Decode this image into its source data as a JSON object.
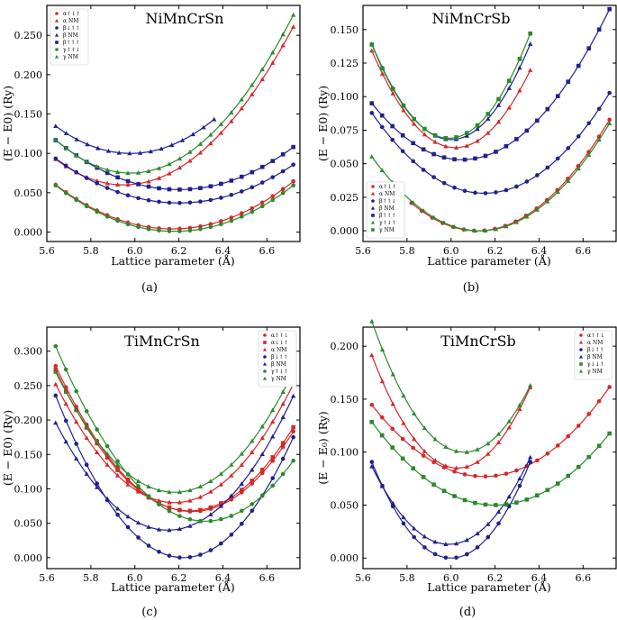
{
  "figure": {
    "colors": {
      "alpha": "#d62728",
      "beta": "#1f1f8f",
      "gamma": "#2a8a2a"
    }
  },
  "chart_data": [
    {
      "type": "scatter",
      "title": "NiMnCrSn",
      "caption": "(a)",
      "xlabel": "Lattice parameter (Å)",
      "ylabel": "(E − E0) (Ry)",
      "xlim": [
        5.6,
        6.75
      ],
      "ylim": [
        -0.012,
        0.288
      ],
      "xticks": [
        "5.6",
        "5.8",
        "6.0",
        "6.2",
        "6.4",
        "6.6"
      ],
      "xtick_values": [
        5.6,
        5.8,
        6.0,
        6.2,
        6.4,
        6.6
      ],
      "yticks": [
        "0.000",
        "0.050",
        "0.100",
        "0.150",
        "0.200",
        "0.250"
      ],
      "ytick_values": [
        0,
        0.05,
        0.1,
        0.15,
        0.2,
        0.25
      ],
      "legend_position": "top-left",
      "series": [
        {
          "name": "α↑↓↑",
          "color": "#d62728",
          "marker": "circle",
          "a0": 6.17,
          "e0": 0.004,
          "k": 0.2,
          "range": [
            5.64,
            6.72
          ],
          "n": 24
        },
        {
          "name": "α NM",
          "color": "#d62728",
          "marker": "triangle",
          "a0": 5.95,
          "e0": 0.06,
          "k": 0.339,
          "range": [
            5.64,
            6.72
          ],
          "n": 24
        },
        {
          "name": "β↓↑↑",
          "color": "#1f1f8f",
          "marker": "circle",
          "a0": 6.2,
          "e0": 0.037,
          "k": 0.18,
          "range": [
            5.64,
            6.72
          ],
          "n": 24
        },
        {
          "name": "β NM",
          "color": "#1f1f8f",
          "marker": "triangle",
          "a0": 5.98,
          "e0": 0.1,
          "k": 0.3,
          "range": [
            5.64,
            6.36
          ],
          "n": 16
        },
        {
          "name": "β↑↑↑",
          "color": "#1f1f8f",
          "marker": "square",
          "a0": 6.2,
          "e0": 0.054,
          "k": 0.2,
          "range": [
            5.64,
            6.72
          ],
          "n": 24
        },
        {
          "name": "γ↑↑↓",
          "color": "#2a8a2a",
          "marker": "circle",
          "a0": 6.18,
          "e0": 0.001,
          "k": 0.2,
          "range": [
            5.64,
            6.72
          ],
          "n": 24
        },
        {
          "name": "γ NM",
          "color": "#2a8a2a",
          "marker": "triangle",
          "a0": 5.98,
          "e0": 0.075,
          "k": 0.367,
          "range": [
            5.64,
            6.72
          ],
          "n": 24
        }
      ]
    },
    {
      "type": "scatter",
      "title": "NiMnCrSb",
      "caption": "(b)",
      "xlabel": "Lattice parameter (Å)",
      "ylabel": "(E − E0) (Ry)",
      "xlim": [
        5.6,
        6.75
      ],
      "ylim": [
        -0.008,
        0.168
      ],
      "xticks": [
        "5.6",
        "5.8",
        "6.0",
        "6.2",
        "6.4",
        "6.6"
      ],
      "xtick_values": [
        5.6,
        5.8,
        6.0,
        6.2,
        6.4,
        6.6
      ],
      "yticks": [
        "0.000",
        "0.025",
        "0.050",
        "0.075",
        "0.100",
        "0.125",
        "0.150"
      ],
      "ytick_values": [
        0,
        0.025,
        0.05,
        0.075,
        0.1,
        0.125,
        0.15
      ],
      "legend_position": "bottom-left",
      "series": [
        {
          "name": "α↑↓↑",
          "color": "#d62728",
          "marker": "circle",
          "a0": 6.12,
          "e0": 0.0,
          "k": 0.23,
          "range": [
            5.82,
            6.72
          ],
          "n": 20
        },
        {
          "name": "α NM",
          "color": "#d62728",
          "marker": "triangle",
          "a0": 6.02,
          "e0": 0.062,
          "k": 0.5,
          "range": [
            5.64,
            6.36
          ],
          "n": 16
        },
        {
          "name": "β↑↑↓",
          "color": "#1f1f8f",
          "marker": "circle",
          "a0": 6.15,
          "e0": 0.028,
          "k": 0.23,
          "range": [
            5.64,
            6.72
          ],
          "n": 24
        },
        {
          "name": "β NM",
          "color": "#1f1f8f",
          "marker": "triangle",
          "a0": 6.0,
          "e0": 0.068,
          "k": 0.55,
          "range": [
            5.64,
            6.36
          ],
          "n": 16
        },
        {
          "name": "β↑↑↑",
          "color": "#1f1f8f",
          "marker": "square",
          "a0": 6.05,
          "e0": 0.053,
          "k": 0.25,
          "range": [
            5.64,
            6.72
          ],
          "n": 24
        },
        {
          "name": "γ↑↓↑",
          "color": "#2a8a2a",
          "marker": "triangle",
          "a0": 6.13,
          "e0": 0.0,
          "k": 0.23,
          "range": [
            5.64,
            6.72
          ],
          "n": 24
        },
        {
          "name": "γ NM",
          "color": "#2a8a2a",
          "marker": "square",
          "a0": 5.99,
          "e0": 0.069,
          "k": 0.57,
          "range": [
            5.64,
            6.36
          ],
          "n": 16
        }
      ]
    },
    {
      "type": "scatter",
      "title": "TiMnCrSn",
      "caption": "(c)",
      "xlabel": "Lattice parameter (Å)",
      "ylabel": "(E − E0) (Ry)",
      "xlim": [
        5.6,
        6.75
      ],
      "ylim": [
        -0.016,
        0.335
      ],
      "xticks": [
        "5.6",
        "5.8",
        "6.0",
        "6.2",
        "6.4",
        "6.6"
      ],
      "xtick_values": [
        5.6,
        5.8,
        6.0,
        6.2,
        6.4,
        6.6
      ],
      "yticks": [
        "0.000",
        "0.050",
        "0.100",
        "0.150",
        "0.200",
        "0.250",
        "0.300"
      ],
      "ytick_values": [
        0,
        0.05,
        0.1,
        0.15,
        0.2,
        0.25,
        0.3
      ],
      "legend_position": "top-right",
      "series": [
        {
          "name": "α↑↑↓",
          "color": "#d62728",
          "marker": "circle",
          "a0": 6.26,
          "e0": 0.067,
          "k": 0.55,
          "range": [
            5.64,
            6.72
          ],
          "n": 24
        },
        {
          "name": "α↓↓↑",
          "color": "#d62728",
          "marker": "square",
          "a0": 6.25,
          "e0": 0.068,
          "k": 0.55,
          "range": [
            5.64,
            6.72
          ],
          "n": 24
        },
        {
          "name": "α NM",
          "color": "#d62728",
          "marker": "triangle",
          "a0": 6.18,
          "e0": 0.08,
          "k": 0.59,
          "range": [
            5.64,
            6.72
          ],
          "n": 24
        },
        {
          "name": "β↓↑↑",
          "color": "#1f1f8f",
          "marker": "circle",
          "a0": 6.22,
          "e0": 0.0,
          "k": 0.7,
          "range": [
            5.64,
            6.72
          ],
          "n": 24
        },
        {
          "name": "β NM",
          "color": "#1f1f8f",
          "marker": "triangle",
          "a0": 6.15,
          "e0": 0.04,
          "k": 0.6,
          "range": [
            5.64,
            6.72
          ],
          "n": 24
        },
        {
          "name": "γ↑↓↑",
          "color": "#2a8a2a",
          "marker": "circle",
          "a0": 6.32,
          "e0": 0.053,
          "k": 0.55,
          "range": [
            5.64,
            6.72
          ],
          "n": 24
        },
        {
          "name": "γ NM",
          "color": "#2a8a2a",
          "marker": "triangle",
          "a0": 6.18,
          "e0": 0.095,
          "k": 0.6,
          "range": [
            5.64,
            6.72
          ],
          "n": 24
        }
      ]
    },
    {
      "type": "scatter",
      "title": "TiMnCrSb",
      "caption": "(d)",
      "xlabel": "Lattice parameter (Å)",
      "ylabel": "(E − E₀) (Ry)",
      "xlim": [
        5.6,
        6.75
      ],
      "ylim": [
        -0.01,
        0.218
      ],
      "xticks": [
        "5.6",
        "5.8",
        "6.0",
        "6.2",
        "6.4",
        "6.6"
      ],
      "xtick_values": [
        5.6,
        5.8,
        6.0,
        6.2,
        6.4,
        6.6
      ],
      "yticks": [
        "0.000",
        "0.050",
        "0.100",
        "0.150",
        "0.200"
      ],
      "ytick_values": [
        0,
        0.05,
        0.1,
        0.15,
        0.2
      ],
      "legend_position": "top-right",
      "series": [
        {
          "name": "α↑↑↓",
          "color": "#d62728",
          "marker": "circle",
          "a0": 6.15,
          "e0": 0.077,
          "k": 0.26,
          "range": [
            5.64,
            6.72
          ],
          "n": 24
        },
        {
          "name": "α NM",
          "color": "#d62728",
          "marker": "triangle",
          "a0": 6.03,
          "e0": 0.085,
          "k": 0.7,
          "range": [
            5.64,
            6.36
          ],
          "n": 16
        },
        {
          "name": "β↓↑↑",
          "color": "#1f1f8f",
          "marker": "circle",
          "a0": 6.0,
          "e0": 0.0,
          "k": 0.7,
          "range": [
            5.64,
            6.36
          ],
          "n": 16
        },
        {
          "name": "β NM",
          "color": "#1f1f8f",
          "marker": "triangle",
          "a0": 5.99,
          "e0": 0.013,
          "k": 0.6,
          "range": [
            5.64,
            6.36
          ],
          "n": 16
        },
        {
          "name": "γ↓↓↑",
          "color": "#2a8a2a",
          "marker": "square",
          "a0": 6.2,
          "e0": 0.05,
          "k": 0.25,
          "range": [
            5.64,
            6.72
          ],
          "n": 24
        },
        {
          "name": "γ NM",
          "color": "#2a8a2a",
          "marker": "triangle",
          "a0": 6.06,
          "e0": 0.1,
          "k": 0.7,
          "range": [
            5.64,
            6.36
          ],
          "n": 16
        }
      ]
    }
  ]
}
